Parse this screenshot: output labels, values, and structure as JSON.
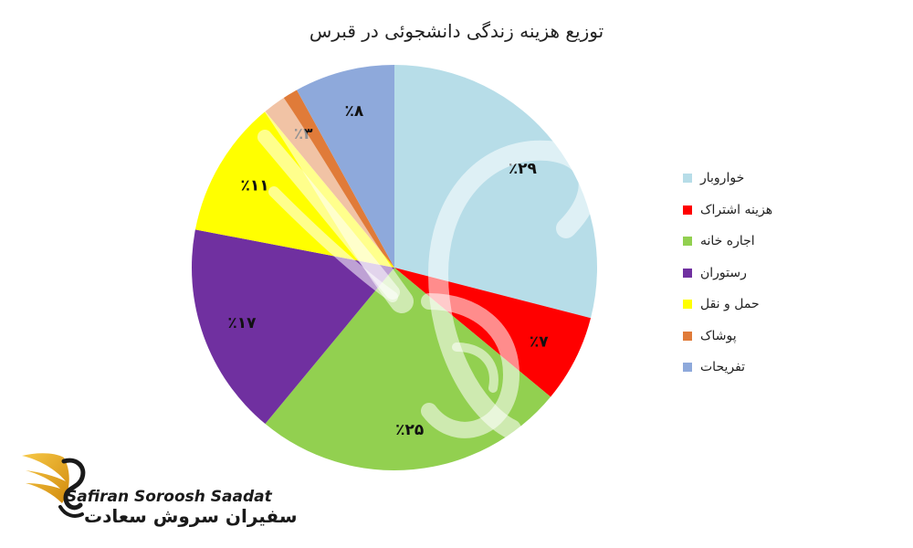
{
  "chart_data": {
    "type": "pie",
    "title": "توزیع هزینه زندگی دانشجوئی در قبرس",
    "categories": [
      "خواروبار",
      "هزینه اشتراک",
      "اجاره خانه",
      "رستوران",
      "حمل و نقل",
      "پوشاک",
      "تفریحات"
    ],
    "values": [
      29,
      7,
      25,
      17,
      11,
      3,
      8
    ],
    "data_labels": [
      "٪۲۹",
      "٪۷",
      "٪۲۵",
      "٪۱۷",
      "٪۱۱",
      "٪۳",
      "٪۸"
    ],
    "colors": [
      "#b7dde8",
      "#ff0000",
      "#92d050",
      "#7030a0",
      "#ffff00",
      "#e07b39",
      "#8ea9db"
    ],
    "start": "12 o'clock",
    "direction": "clockwise",
    "legend_position": "right"
  },
  "brand": {
    "latin": "Safiran Soroosh Saadat",
    "persian": "سفیران سروش سعادت",
    "logo_icon": "golden-wing-logo-icon",
    "watermark_icon": "wing-swirl-watermark-icon"
  }
}
